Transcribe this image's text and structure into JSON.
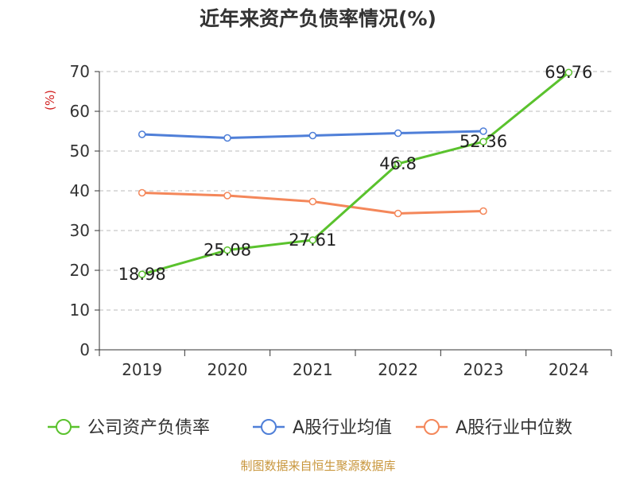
{
  "title": "近年来资产负债率情况(%)",
  "footer": "制图数据来自恒生聚源数据库",
  "chart_data": {
    "type": "line",
    "title": "近年来资产负债率情况(%)",
    "ylabel": "(%)",
    "xlabel": "",
    "ylim": [
      0,
      70
    ],
    "yticks": [
      0,
      10,
      20,
      30,
      40,
      50,
      60,
      70
    ],
    "grid": true,
    "legend_position": "bottom",
    "categories": [
      "2019",
      "2020",
      "2021",
      "2022",
      "2023",
      "2024"
    ],
    "series": [
      {
        "name": "公司资产负债率",
        "color": "#5ac22d",
        "values": [
          18.98,
          25.08,
          27.61,
          46.8,
          52.36,
          69.76
        ],
        "labels": [
          "18.98",
          "25.08",
          "27.61",
          "46.8",
          "52.36",
          "69.76"
        ]
      },
      {
        "name": "A股行业均值",
        "color": "#4f7fd8",
        "values": [
          54.2,
          53.3,
          53.9,
          54.5,
          55.0,
          null
        ]
      },
      {
        "name": "A股行业中位数",
        "color": "#f4875a",
        "values": [
          39.5,
          38.8,
          37.3,
          34.3,
          34.9,
          null
        ]
      }
    ]
  }
}
